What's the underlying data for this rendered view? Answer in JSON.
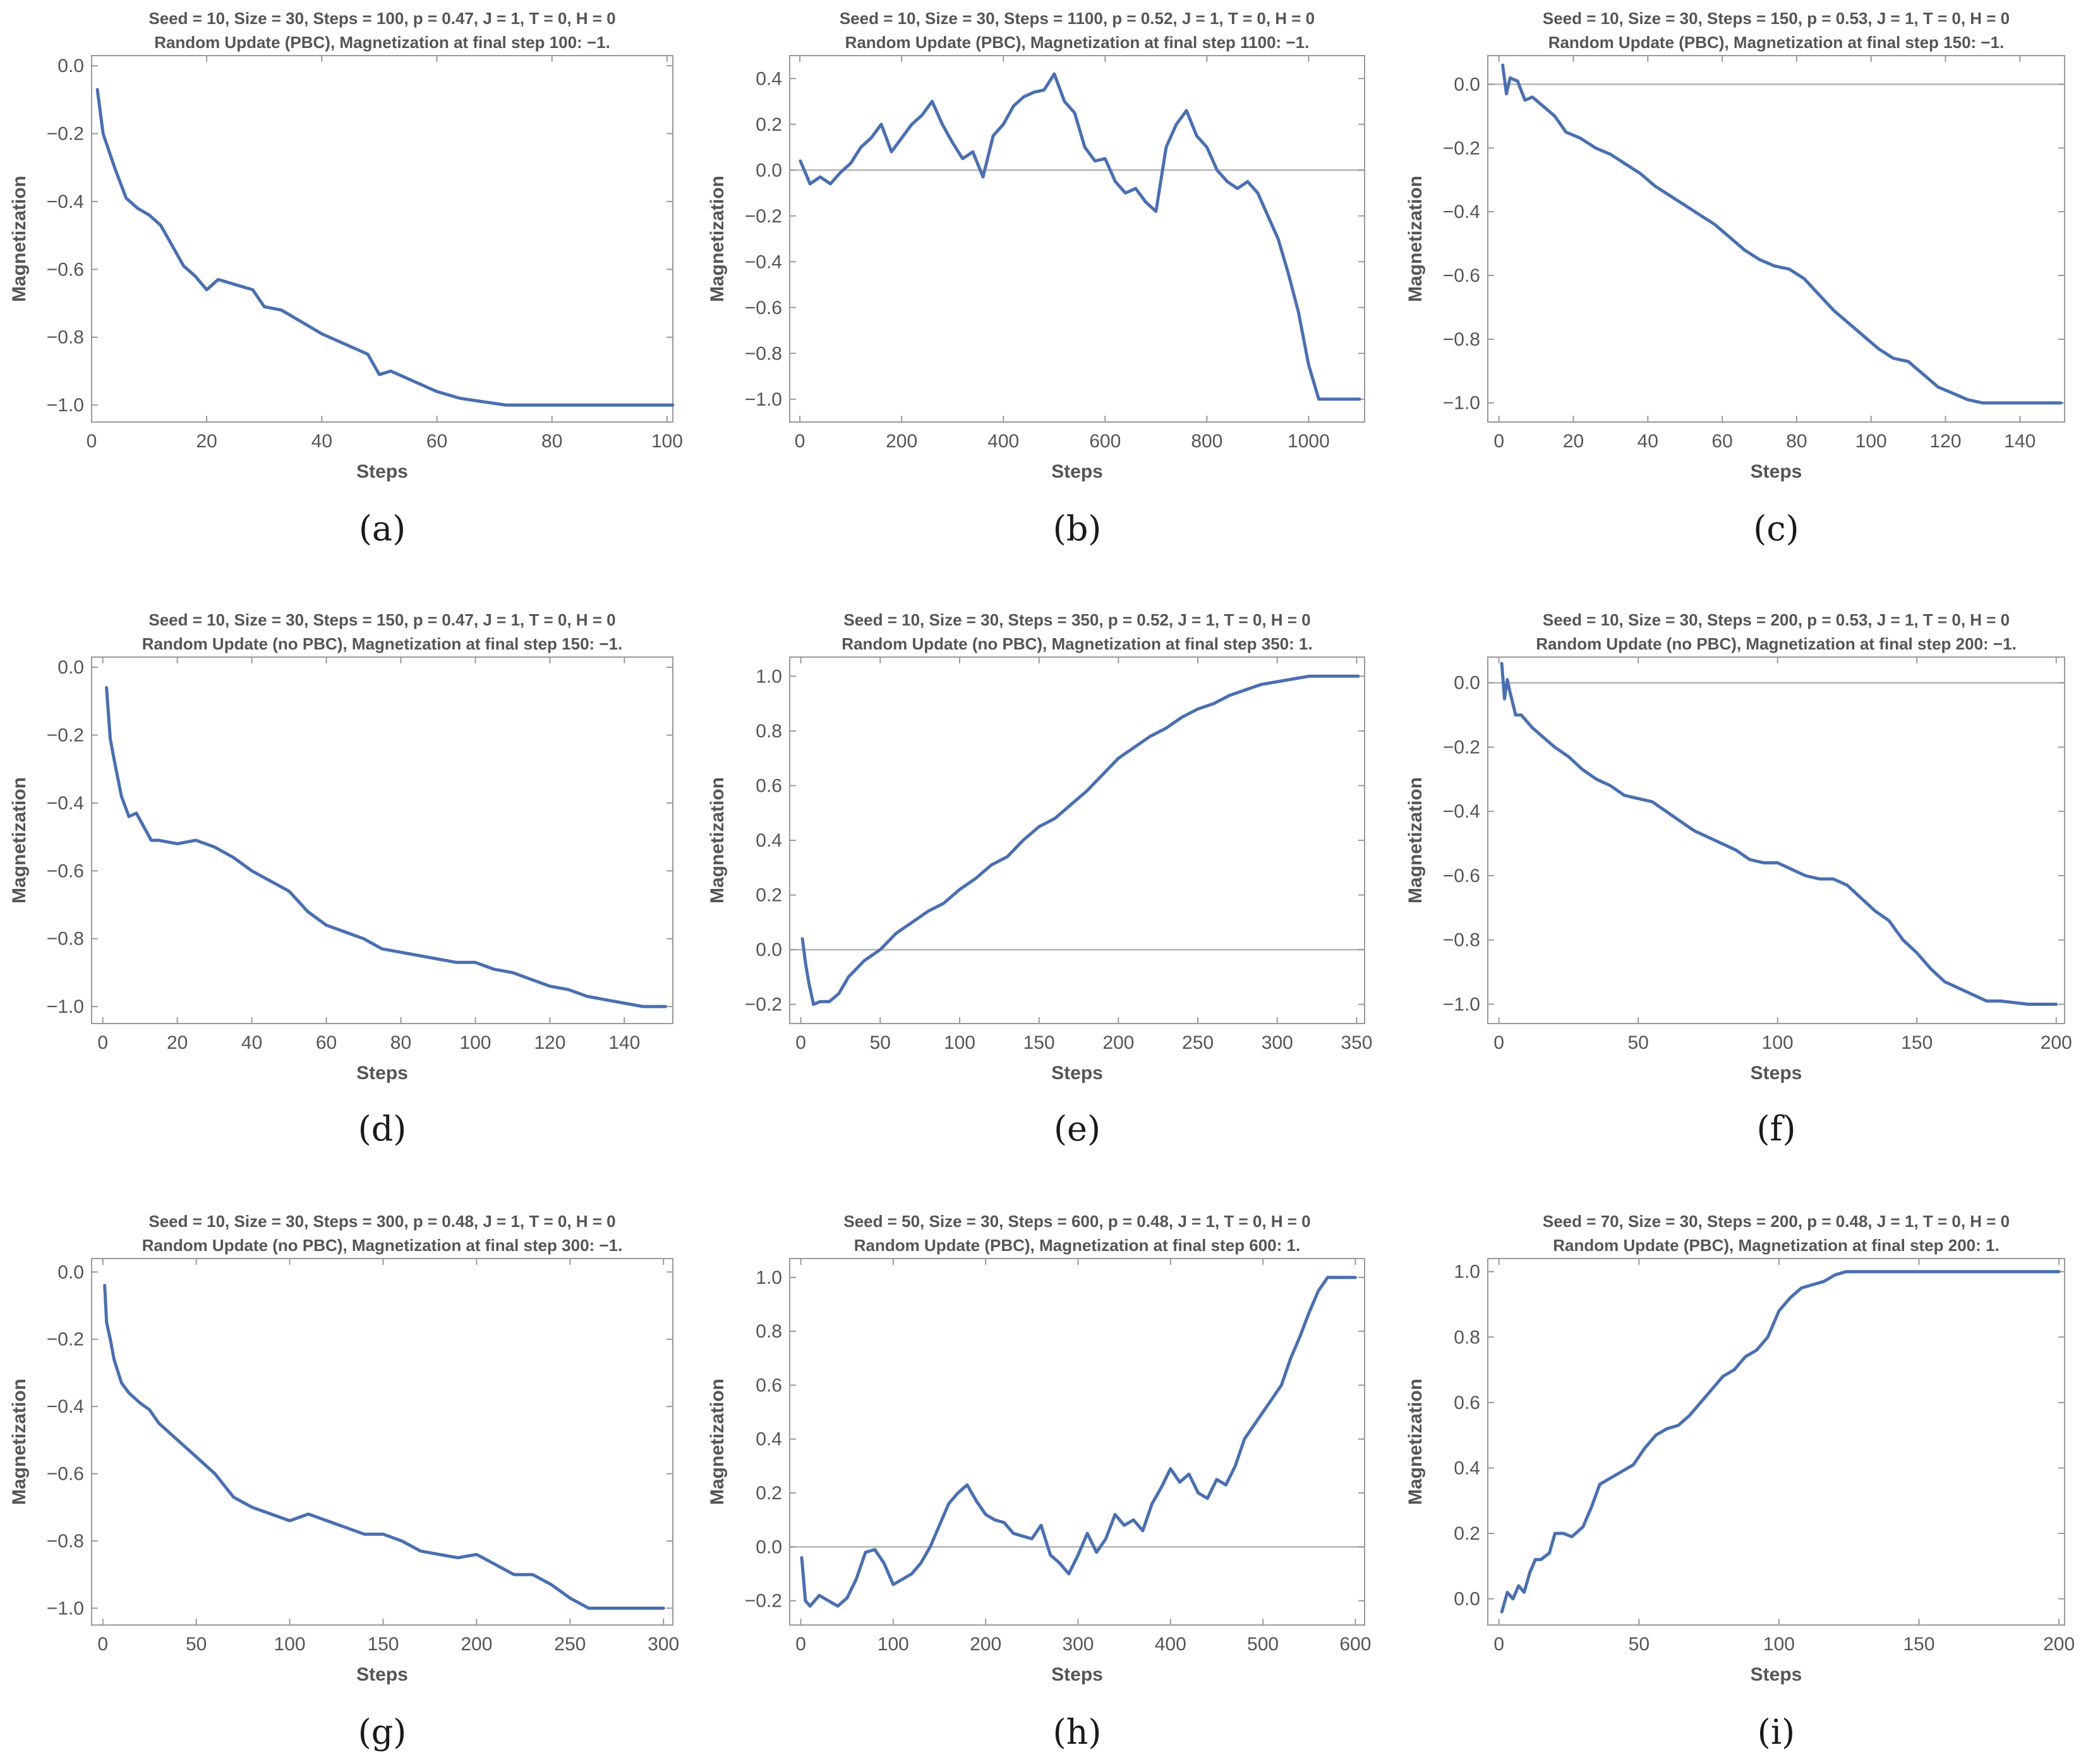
{
  "style": {
    "series_color": "#4a6fb0",
    "axis_color": "#9a9a9a",
    "zero_line_color": "#b5b5b5",
    "text_color": "#555555"
  },
  "chart_data": [
    {
      "type": "line",
      "caption": "(a)",
      "title": "Seed = 10, Size = 30, Steps = 100, p = 0.47, J = 1, T = 0, H = 0",
      "subtitle": "Random Update (PBC), Magnetization at final step 100: −1.",
      "xlabel": "Steps",
      "ylabel": "Magnetization",
      "xlim": [
        0,
        101
      ],
      "ylim": [
        -1.05,
        0.03
      ],
      "xticks": [
        0,
        20,
        40,
        60,
        80,
        100
      ],
      "yticks": [
        -1.0,
        -0.8,
        -0.6,
        -0.4,
        -0.2,
        0.0
      ],
      "zero_line": false,
      "x": [
        1,
        2,
        4,
        6,
        8,
        10,
        12,
        14,
        16,
        18,
        20,
        22,
        24,
        26,
        28,
        30,
        33,
        36,
        40,
        44,
        48,
        50,
        52,
        56,
        60,
        64,
        68,
        72,
        80,
        90,
        101
      ],
      "y": [
        -0.07,
        -0.2,
        -0.3,
        -0.39,
        -0.42,
        -0.44,
        -0.47,
        -0.53,
        -0.59,
        -0.62,
        -0.66,
        -0.63,
        -0.64,
        -0.65,
        -0.66,
        -0.71,
        -0.72,
        -0.75,
        -0.79,
        -0.82,
        -0.85,
        -0.91,
        -0.9,
        -0.93,
        -0.96,
        -0.98,
        -0.99,
        -1.0,
        -1.0,
        -1.0,
        -1.0
      ]
    },
    {
      "type": "line",
      "caption": "(b)",
      "title": "Seed = 10, Size = 30, Steps = 1100, p = 0.52, J = 1, T = 0, H = 0",
      "subtitle": "Random Update (PBC), Magnetization at final step 1100: −1.",
      "xlabel": "Steps",
      "ylabel": "Magnetization",
      "xlim": [
        -20,
        1110
      ],
      "ylim": [
        -1.1,
        0.5
      ],
      "xticks": [
        0,
        200,
        400,
        600,
        800,
        1000
      ],
      "yticks": [
        -1.0,
        -0.8,
        -0.6,
        -0.4,
        -0.2,
        0.0,
        0.2,
        0.4
      ],
      "zero_line": true,
      "x": [
        1,
        20,
        40,
        60,
        80,
        100,
        120,
        140,
        160,
        180,
        200,
        220,
        240,
        260,
        280,
        300,
        320,
        340,
        360,
        380,
        400,
        420,
        440,
        460,
        480,
        500,
        520,
        540,
        560,
        580,
        600,
        620,
        640,
        660,
        680,
        700,
        720,
        740,
        760,
        780,
        800,
        820,
        840,
        860,
        880,
        900,
        920,
        940,
        960,
        980,
        1000,
        1020,
        1040,
        1060,
        1080,
        1100
      ],
      "y": [
        0.04,
        -0.06,
        -0.03,
        -0.06,
        -0.01,
        0.03,
        0.1,
        0.14,
        0.2,
        0.08,
        0.14,
        0.2,
        0.24,
        0.3,
        0.2,
        0.12,
        0.05,
        0.08,
        -0.03,
        0.15,
        0.2,
        0.28,
        0.32,
        0.34,
        0.35,
        0.42,
        0.3,
        0.25,
        0.1,
        0.04,
        0.05,
        -0.05,
        -0.1,
        -0.08,
        -0.14,
        -0.18,
        0.1,
        0.2,
        0.26,
        0.15,
        0.1,
        0.0,
        -0.05,
        -0.08,
        -0.05,
        -0.1,
        -0.2,
        -0.3,
        -0.45,
        -0.62,
        -0.85,
        -1.0,
        -1.0,
        -1.0,
        -1.0,
        -1.0
      ]
    },
    {
      "type": "line",
      "caption": "(c)",
      "title": "Seed = 10, Size = 30, Steps = 150, p = 0.53, J = 1, T = 0, H = 0",
      "subtitle": "Random Update (PBC), Magnetization at final step 150: −1.",
      "xlabel": "Steps",
      "ylabel": "Magnetization",
      "xlim": [
        -3,
        152
      ],
      "ylim": [
        -1.06,
        0.09
      ],
      "xticks": [
        0,
        20,
        40,
        60,
        80,
        100,
        120,
        140
      ],
      "yticks": [
        -1.0,
        -0.8,
        -0.6,
        -0.4,
        -0.2,
        0.0
      ],
      "zero_line": true,
      "x": [
        1,
        2,
        3,
        5,
        7,
        9,
        12,
        15,
        18,
        22,
        26,
        30,
        34,
        38,
        42,
        46,
        50,
        54,
        58,
        62,
        66,
        70,
        74,
        78,
        82,
        86,
        90,
        94,
        98,
        102,
        106,
        110,
        114,
        118,
        122,
        126,
        130,
        140,
        151
      ],
      "y": [
        0.06,
        -0.03,
        0.02,
        0.01,
        -0.05,
        -0.04,
        -0.07,
        -0.1,
        -0.15,
        -0.17,
        -0.2,
        -0.22,
        -0.25,
        -0.28,
        -0.32,
        -0.35,
        -0.38,
        -0.41,
        -0.44,
        -0.48,
        -0.52,
        -0.55,
        -0.57,
        -0.58,
        -0.61,
        -0.66,
        -0.71,
        -0.75,
        -0.79,
        -0.83,
        -0.86,
        -0.87,
        -0.91,
        -0.95,
        -0.97,
        -0.99,
        -1.0,
        -1.0,
        -1.0
      ]
    },
    {
      "type": "line",
      "caption": "(d)",
      "title": "Seed = 10, Size = 30, Steps = 150, p = 0.47, J = 1, T = 0, H = 0",
      "subtitle": "Random Update (no PBC), Magnetization at final step 150: −1.",
      "xlabel": "Steps",
      "ylabel": "Magnetization",
      "xlim": [
        -3,
        153
      ],
      "ylim": [
        -1.05,
        0.03
      ],
      "xticks": [
        0,
        20,
        40,
        60,
        80,
        100,
        120,
        140
      ],
      "yticks": [
        -1.0,
        -0.8,
        -0.6,
        -0.4,
        -0.2,
        0.0
      ],
      "zero_line": false,
      "x": [
        1,
        2,
        3,
        5,
        7,
        9,
        11,
        13,
        15,
        20,
        25,
        30,
        35,
        40,
        45,
        50,
        55,
        60,
        65,
        70,
        75,
        80,
        85,
        90,
        95,
        100,
        105,
        110,
        115,
        120,
        125,
        130,
        135,
        140,
        145,
        151
      ],
      "y": [
        -0.06,
        -0.21,
        -0.27,
        -0.38,
        -0.44,
        -0.43,
        -0.47,
        -0.51,
        -0.51,
        -0.52,
        -0.51,
        -0.53,
        -0.56,
        -0.6,
        -0.63,
        -0.66,
        -0.72,
        -0.76,
        -0.78,
        -0.8,
        -0.83,
        -0.84,
        -0.85,
        -0.86,
        -0.87,
        -0.87,
        -0.89,
        -0.9,
        -0.92,
        -0.94,
        -0.95,
        -0.97,
        -0.98,
        -0.99,
        -1.0,
        -1.0
      ]
    },
    {
      "type": "line",
      "caption": "(e)",
      "title": "Seed = 10, Size = 30, Steps = 350, p = 0.52, J = 1, T = 0, H = 0",
      "subtitle": "Random Update (no PBC), Magnetization at final step 350: 1.",
      "xlabel": "Steps",
      "ylabel": "Magnetization",
      "xlim": [
        -7,
        355
      ],
      "ylim": [
        -0.27,
        1.07
      ],
      "xticks": [
        0,
        50,
        100,
        150,
        200,
        250,
        300,
        350
      ],
      "yticks": [
        -0.2,
        0.0,
        0.2,
        0.4,
        0.6,
        0.8,
        1.0
      ],
      "zero_line": true,
      "x": [
        1,
        3,
        5,
        8,
        12,
        18,
        24,
        30,
        40,
        50,
        60,
        70,
        80,
        90,
        100,
        110,
        120,
        130,
        140,
        150,
        160,
        170,
        180,
        190,
        200,
        210,
        220,
        230,
        240,
        250,
        260,
        270,
        280,
        290,
        300,
        310,
        320,
        330,
        340,
        351
      ],
      "y": [
        0.04,
        -0.05,
        -0.12,
        -0.2,
        -0.19,
        -0.19,
        -0.16,
        -0.1,
        -0.04,
        0.0,
        0.06,
        0.1,
        0.14,
        0.17,
        0.22,
        0.26,
        0.31,
        0.34,
        0.4,
        0.45,
        0.48,
        0.53,
        0.58,
        0.64,
        0.7,
        0.74,
        0.78,
        0.81,
        0.85,
        0.88,
        0.9,
        0.93,
        0.95,
        0.97,
        0.98,
        0.99,
        1.0,
        1.0,
        1.0,
        1.0
      ]
    },
    {
      "type": "line",
      "caption": "(f)",
      "title": "Seed = 10, Size = 30, Steps = 200, p = 0.53, J = 1, T = 0, H = 0",
      "subtitle": "Random Update (no PBC), Magnetization at final step 200: −1.",
      "xlabel": "Steps",
      "ylabel": "Magnetization",
      "xlim": [
        -4,
        203
      ],
      "ylim": [
        -1.06,
        0.08
      ],
      "xticks": [
        0,
        50,
        100,
        150,
        200
      ],
      "yticks": [
        -1.0,
        -0.8,
        -0.6,
        -0.4,
        -0.2,
        0.0
      ],
      "zero_line": true,
      "x": [
        1,
        2,
        3,
        4,
        6,
        8,
        12,
        16,
        20,
        25,
        30,
        35,
        40,
        45,
        50,
        55,
        60,
        65,
        70,
        75,
        80,
        85,
        90,
        95,
        100,
        105,
        110,
        115,
        120,
        125,
        130,
        135,
        140,
        145,
        150,
        155,
        160,
        165,
        170,
        175,
        180,
        190,
        200
      ],
      "y": [
        0.06,
        -0.05,
        0.01,
        -0.03,
        -0.1,
        -0.1,
        -0.14,
        -0.17,
        -0.2,
        -0.23,
        -0.27,
        -0.3,
        -0.32,
        -0.35,
        -0.36,
        -0.37,
        -0.4,
        -0.43,
        -0.46,
        -0.48,
        -0.5,
        -0.52,
        -0.55,
        -0.56,
        -0.56,
        -0.58,
        -0.6,
        -0.61,
        -0.61,
        -0.63,
        -0.67,
        -0.71,
        -0.74,
        -0.8,
        -0.84,
        -0.89,
        -0.93,
        -0.95,
        -0.97,
        -0.99,
        -0.99,
        -1.0,
        -1.0
      ]
    },
    {
      "type": "line",
      "caption": "(g)",
      "title": "Seed = 10, Size = 30, Steps = 300, p = 0.48, J = 1, T = 0, H = 0",
      "subtitle": "Random Update (no PBC), Magnetization at final step 300: −1.",
      "xlabel": "Steps",
      "ylabel": "Magnetization",
      "xlim": [
        -6,
        305
      ],
      "ylim": [
        -1.05,
        0.04
      ],
      "xticks": [
        0,
        50,
        100,
        150,
        200,
        250,
        300
      ],
      "yticks": [
        -1.0,
        -0.8,
        -0.6,
        -0.4,
        -0.2,
        0.0
      ],
      "zero_line": false,
      "x": [
        1,
        2,
        4,
        6,
        10,
        14,
        20,
        25,
        30,
        40,
        50,
        60,
        70,
        80,
        90,
        100,
        110,
        120,
        130,
        140,
        150,
        160,
        170,
        180,
        190,
        200,
        210,
        220,
        230,
        240,
        250,
        260,
        270,
        280,
        290,
        300
      ],
      "y": [
        -0.04,
        -0.15,
        -0.2,
        -0.26,
        -0.33,
        -0.36,
        -0.39,
        -0.41,
        -0.45,
        -0.5,
        -0.55,
        -0.6,
        -0.67,
        -0.7,
        -0.72,
        -0.74,
        -0.72,
        -0.74,
        -0.76,
        -0.78,
        -0.78,
        -0.8,
        -0.83,
        -0.84,
        -0.85,
        -0.84,
        -0.87,
        -0.9,
        -0.9,
        -0.93,
        -0.97,
        -1.0,
        -1.0,
        -1.0,
        -1.0,
        -1.0
      ]
    },
    {
      "type": "line",
      "caption": "(h)",
      "title": "Seed = 50, Size = 30, Steps = 600, p = 0.48, J = 1, T = 0, H = 0",
      "subtitle": "Random Update (PBC), Magnetization at final step 600: 1.",
      "xlabel": "Steps",
      "ylabel": "Magnetization",
      "xlim": [
        -12,
        610
      ],
      "ylim": [
        -0.29,
        1.07
      ],
      "xticks": [
        0,
        100,
        200,
        300,
        400,
        500,
        600
      ],
      "yticks": [
        -0.2,
        0.0,
        0.2,
        0.4,
        0.6,
        0.8,
        1.0
      ],
      "zero_line": true,
      "x": [
        1,
        5,
        10,
        20,
        30,
        40,
        50,
        60,
        70,
        80,
        90,
        100,
        110,
        120,
        130,
        140,
        150,
        160,
        170,
        180,
        190,
        200,
        210,
        220,
        230,
        240,
        250,
        260,
        270,
        280,
        290,
        300,
        310,
        320,
        330,
        340,
        350,
        360,
        370,
        380,
        390,
        400,
        410,
        420,
        430,
        440,
        450,
        460,
        470,
        480,
        490,
        500,
        510,
        520,
        530,
        540,
        550,
        560,
        570,
        580,
        590,
        600
      ],
      "y": [
        -0.04,
        -0.2,
        -0.22,
        -0.18,
        -0.2,
        -0.22,
        -0.19,
        -0.12,
        -0.02,
        -0.01,
        -0.06,
        -0.14,
        -0.12,
        -0.1,
        -0.06,
        0.0,
        0.08,
        0.16,
        0.2,
        0.23,
        0.17,
        0.12,
        0.1,
        0.09,
        0.05,
        0.04,
        0.03,
        0.08,
        -0.03,
        -0.06,
        -0.1,
        -0.03,
        0.05,
        -0.02,
        0.03,
        0.12,
        0.08,
        0.1,
        0.06,
        0.16,
        0.22,
        0.29,
        0.24,
        0.27,
        0.2,
        0.18,
        0.25,
        0.23,
        0.3,
        0.4,
        0.45,
        0.5,
        0.55,
        0.6,
        0.7,
        0.78,
        0.87,
        0.95,
        1.0,
        1.0,
        1.0,
        1.0
      ]
    },
    {
      "type": "line",
      "caption": "(i)",
      "title": "Seed = 70, Size = 30, Steps = 200, p = 0.48, J = 1, T = 0, H = 0",
      "subtitle": "Random Update (PBC), Magnetization at final step 200: 1.",
      "xlabel": "Steps",
      "ylabel": "Magnetization",
      "xlim": [
        -4,
        202
      ],
      "ylim": [
        -0.08,
        1.04
      ],
      "xticks": [
        0,
        50,
        100,
        150,
        200
      ],
      "yticks": [
        0.0,
        0.2,
        0.4,
        0.6,
        0.8,
        1.0
      ],
      "zero_line": false,
      "x": [
        1,
        3,
        5,
        7,
        9,
        11,
        13,
        15,
        18,
        20,
        23,
        26,
        30,
        33,
        36,
        40,
        44,
        48,
        52,
        56,
        60,
        64,
        68,
        72,
        76,
        80,
        84,
        88,
        92,
        96,
        100,
        104,
        108,
        112,
        116,
        120,
        124,
        130,
        140,
        150,
        160,
        170,
        180,
        190,
        200
      ],
      "y": [
        -0.04,
        0.02,
        0.0,
        0.04,
        0.02,
        0.08,
        0.12,
        0.12,
        0.14,
        0.2,
        0.2,
        0.19,
        0.22,
        0.28,
        0.35,
        0.37,
        0.39,
        0.41,
        0.46,
        0.5,
        0.52,
        0.53,
        0.56,
        0.6,
        0.64,
        0.68,
        0.7,
        0.74,
        0.76,
        0.8,
        0.88,
        0.92,
        0.95,
        0.96,
        0.97,
        0.99,
        1.0,
        1.0,
        1.0,
        1.0,
        1.0,
        1.0,
        1.0,
        1.0,
        1.0
      ]
    }
  ]
}
